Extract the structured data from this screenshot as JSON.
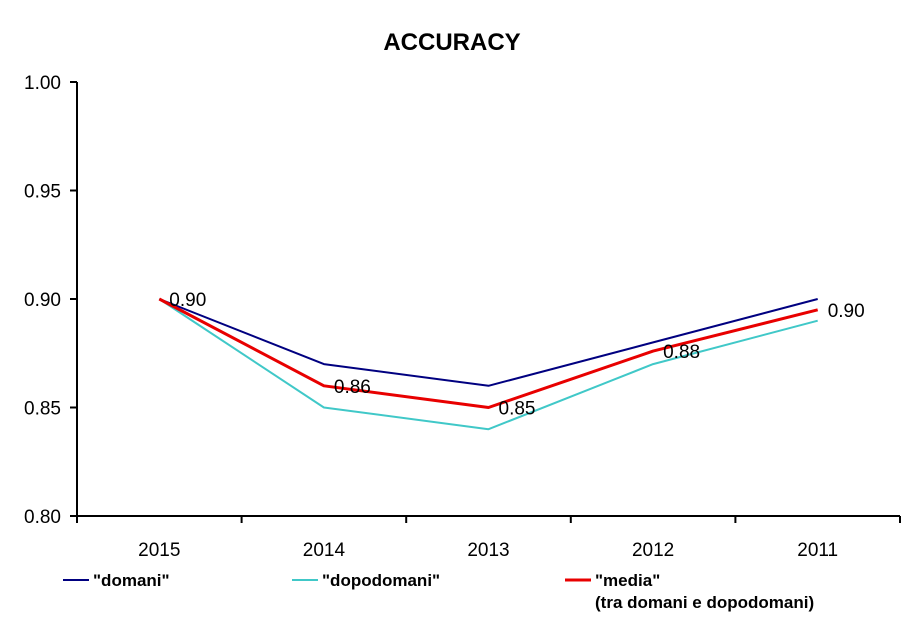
{
  "chart_data": {
    "type": "line",
    "title": "ACCURACY",
    "xlabel": "",
    "ylabel": "",
    "categories": [
      "2015",
      "2014",
      "2013",
      "2012",
      "2011"
    ],
    "ylim": [
      0.8,
      1.0
    ],
    "yticks": [
      "0.80",
      "0.85",
      "0.90",
      "0.95",
      "1.00"
    ],
    "grid": false,
    "legend_position": "bottom",
    "series": [
      {
        "name": "\"domani\"",
        "color": "#000080",
        "values": [
          0.9,
          0.87,
          0.86,
          0.88,
          0.9
        ]
      },
      {
        "name": "\"dopodomani\"",
        "color": "#40C8C8",
        "values": [
          0.9,
          0.85,
          0.84,
          0.87,
          0.89
        ]
      },
      {
        "name": "\"media\"",
        "name_line2": "(tra domani e dopodomani)",
        "color": "#E80000",
        "values": [
          0.9,
          0.86,
          0.85,
          0.876,
          0.895
        ]
      }
    ],
    "data_labels": [
      {
        "series": 2,
        "index": 0,
        "text": "0.90"
      },
      {
        "series": 2,
        "index": 1,
        "text": "0.86"
      },
      {
        "series": 2,
        "index": 2,
        "text": "0.85"
      },
      {
        "series": 2,
        "index": 3,
        "text": "0.88"
      },
      {
        "series": 2,
        "index": 4,
        "text": "0.90"
      }
    ]
  }
}
